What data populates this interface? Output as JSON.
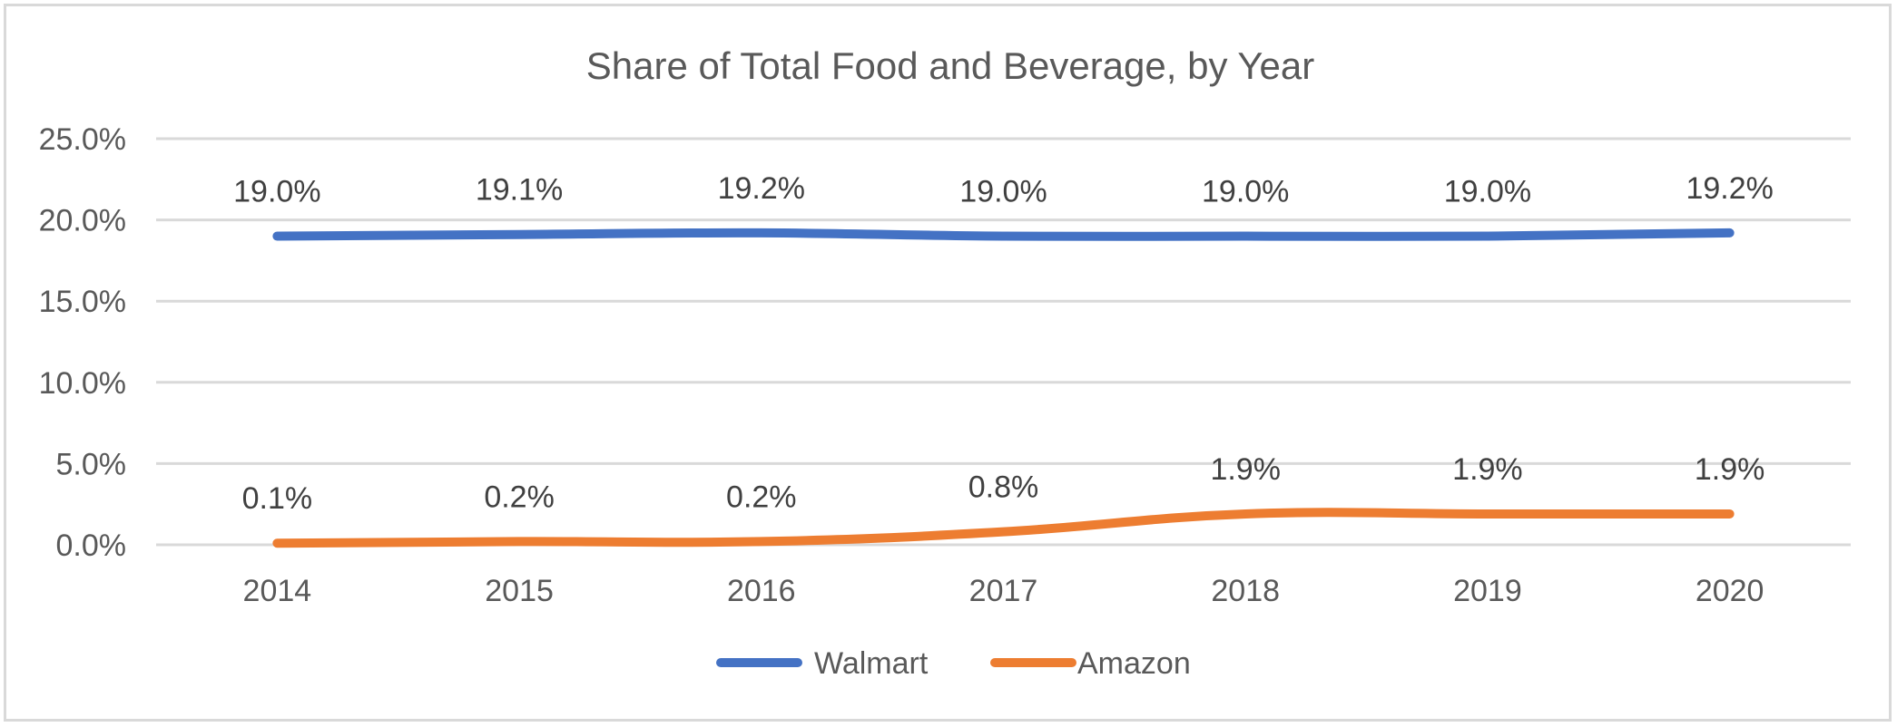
{
  "chart_data": {
    "type": "line",
    "title": "Share of Total Food and Beverage, by Year",
    "categories": [
      "2014",
      "2015",
      "2016",
      "2017",
      "2018",
      "2019",
      "2020"
    ],
    "series": [
      {
        "name": "Walmart",
        "color": "#4472c4",
        "values": [
          19.0,
          19.1,
          19.2,
          19.0,
          19.0,
          19.0,
          19.2
        ],
        "labels": [
          "19.0%",
          "19.1%",
          "19.2%",
          "19.0%",
          "19.0%",
          "19.0%",
          "19.2%"
        ]
      },
      {
        "name": "Amazon",
        "color": "#ed7d31",
        "values": [
          0.1,
          0.2,
          0.2,
          0.8,
          1.9,
          1.9,
          1.9
        ],
        "labels": [
          "0.1%",
          "0.2%",
          "0.2%",
          "0.8%",
          "1.9%",
          "1.9%",
          "1.9%"
        ]
      }
    ],
    "y_ticks": [
      "0.0%",
      "5.0%",
      "10.0%",
      "15.0%",
      "20.0%",
      "25.0%"
    ],
    "ylim": [
      0,
      25
    ],
    "xlabel": "",
    "ylabel": "",
    "grid": true,
    "legend_position": "bottom"
  }
}
